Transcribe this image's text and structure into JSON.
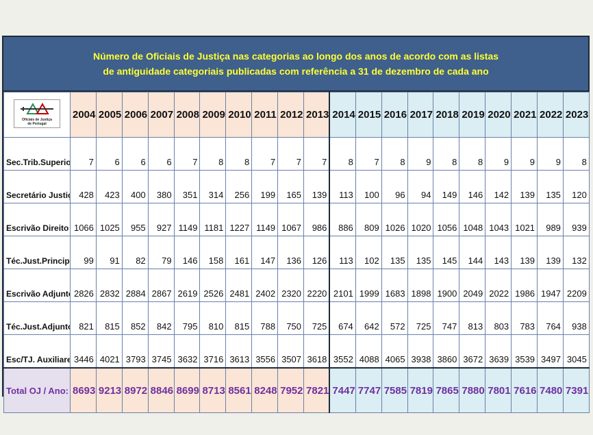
{
  "title": {
    "line1": "Número de Oficiais de Justiça nas categorias ao longo dos anos de acordo com as listas",
    "line2": "de antiguidade categoriais publicadas com referência a 31 de dezembro de cada ano"
  },
  "logo": {
    "icon": "oficiais-de-justica-logo",
    "line1": "Oficiais de Justiça",
    "line2": "de Portugal"
  },
  "colors": {
    "title_band": "#3f5f8c",
    "title_text": "#ffff33",
    "era1": "#fbe5d6",
    "era2": "#daeef3",
    "total_text": "#7030a0"
  },
  "chart_data": {
    "type": "table",
    "title": "Número de Oficiais de Justiça nas categorias ao longo dos anos de acordo com as listas de antiguidade categoriais publicadas com referência a 31 de dezembro de cada ano",
    "years": [
      "2004",
      "2005",
      "2006",
      "2007",
      "2008",
      "2009",
      "2010",
      "2011",
      "2012",
      "2013",
      "2014",
      "2015",
      "2016",
      "2017",
      "2018",
      "2019",
      "2020",
      "2021",
      "2022",
      "2023"
    ],
    "rows": [
      {
        "label": "Sec.Trib.Superior",
        "values": [
          7,
          6,
          6,
          6,
          7,
          8,
          8,
          7,
          7,
          7,
          8,
          7,
          8,
          9,
          8,
          8,
          9,
          9,
          9,
          8
        ]
      },
      {
        "label": "Secretário Justiça",
        "values": [
          428,
          423,
          400,
          380,
          351,
          314,
          256,
          199,
          165,
          139,
          113,
          100,
          96,
          94,
          149,
          146,
          142,
          139,
          135,
          120
        ]
      },
      {
        "label": "Escrivão Direito",
        "values": [
          1066,
          1025,
          955,
          927,
          1149,
          1181,
          1227,
          1149,
          1067,
          986,
          886,
          809,
          1026,
          1020,
          1056,
          1048,
          1043,
          1021,
          989,
          939
        ]
      },
      {
        "label": "Téc.Just.Principal",
        "values": [
          99,
          91,
          82,
          79,
          146,
          158,
          161,
          147,
          136,
          126,
          113,
          102,
          135,
          135,
          145,
          144,
          143,
          139,
          139,
          132
        ]
      },
      {
        "label": "Escrivão Adjunto",
        "values": [
          2826,
          2832,
          2884,
          2867,
          2619,
          2526,
          2481,
          2402,
          2320,
          2220,
          2101,
          1999,
          1683,
          1898,
          1900,
          2049,
          2022,
          1986,
          1947,
          2209
        ]
      },
      {
        "label": "Téc.Just.Adjunto",
        "values": [
          821,
          815,
          852,
          842,
          795,
          810,
          815,
          788,
          750,
          725,
          674,
          642,
          572,
          725,
          747,
          813,
          803,
          783,
          764,
          938
        ]
      },
      {
        "label": "Esc/TJ. Auxiliares",
        "values": [
          3446,
          4021,
          3793,
          3745,
          3632,
          3716,
          3613,
          3556,
          3507,
          3618,
          3552,
          4088,
          4065,
          3938,
          3860,
          3672,
          3639,
          3539,
          3497,
          3045
        ]
      }
    ],
    "total": {
      "label": "Total OJ / Ano:",
      "values": [
        8693,
        9213,
        8972,
        8846,
        8699,
        8713,
        8561,
        8248,
        7952,
        7821,
        7447,
        7747,
        7585,
        7819,
        7865,
        7880,
        7801,
        7616,
        7480,
        7391
      ]
    }
  }
}
